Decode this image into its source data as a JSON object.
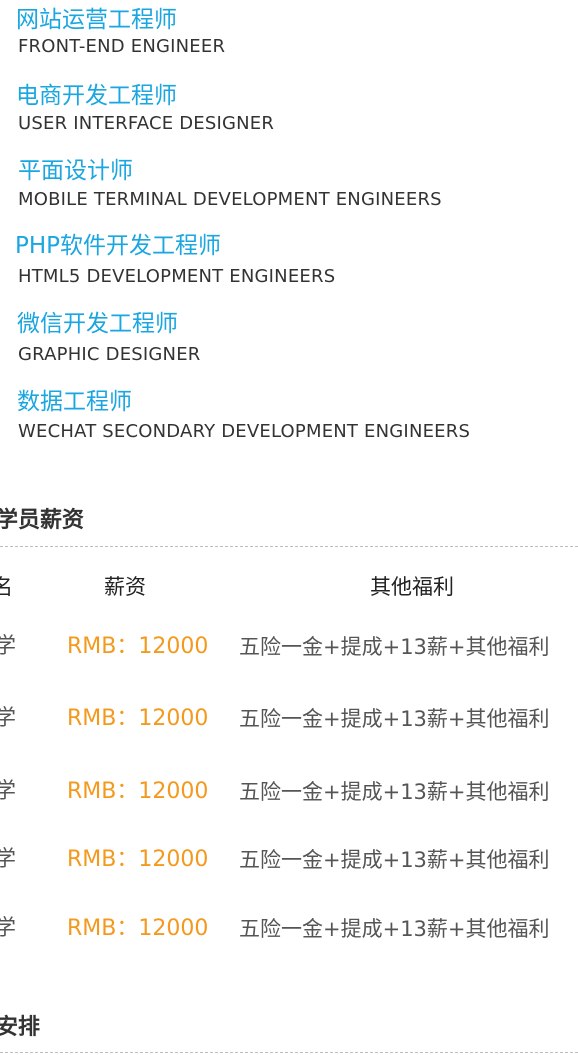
{
  "jobs": [
    {
      "title": "网站运营工程师",
      "subtitle": "FRONT-END ENGINEER"
    },
    {
      "title": "电商开发工程师",
      "subtitle": "USER INTERFACE DESIGNER"
    },
    {
      "title": "平面设计师",
      "subtitle": "MOBILE TERMINAL DEVELOPMENT ENGINEERS"
    },
    {
      "title": "PHP软件开发工程师",
      "subtitle": "HTML5 DEVELOPMENT ENGINEERS"
    },
    {
      "title": "微信开发工程师",
      "subtitle": "GRAPHIC DESIGNER"
    },
    {
      "title": "数据工程师",
      "subtitle": "WECHAT SECONDARY DEVELOPMENT ENGINEERS"
    }
  ],
  "salary_section": {
    "title": "学员薪资",
    "headers": {
      "col1": "名",
      "col2": "薪资",
      "col3": "其他福利"
    },
    "rows": [
      {
        "school": "学",
        "salary": "RMB：12000",
        "benefits": "五险一金+提成+13薪+其他福利"
      },
      {
        "school": "学",
        "salary": "RMB：12000",
        "benefits": "五险一金+提成+13薪+其他福利"
      },
      {
        "school": "学",
        "salary": "RMB：12000",
        "benefits": "五险一金+提成+13薪+其他福利"
      },
      {
        "school": "学",
        "salary": "RMB：12000",
        "benefits": "五险一金+提成+13薪+其他福利"
      },
      {
        "school": "学",
        "salary": "RMB：12000",
        "benefits": "五险一金+提成+13薪+其他福利"
      }
    ]
  },
  "arrangement_section": {
    "title": "安排"
  }
}
